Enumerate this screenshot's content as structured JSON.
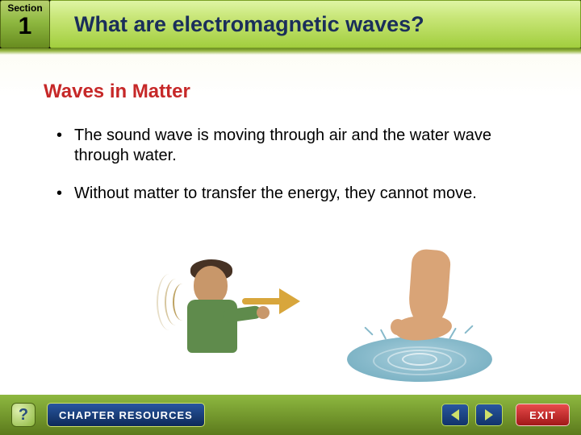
{
  "header": {
    "section_label": "Section",
    "section_number": "1",
    "title": "What are electromagnetic waves?"
  },
  "content": {
    "subtitle": "Waves in Matter",
    "bullets": [
      "The sound wave is moving through air and the water wave through water.",
      "Without matter to transfer the energy, they cannot move."
    ]
  },
  "illustrations": {
    "trumpet": {
      "skin_color": "#c8976a",
      "hair_color": "#463224",
      "shirt_color": "#5f8b4c",
      "trumpet_color": "#d8a63c",
      "wave_color": "#bda262"
    },
    "foot_water": {
      "skin_color": "#d9a477",
      "water_colors": [
        "#acd1de",
        "#86b9ca",
        "#6ea9bc"
      ],
      "ripple_color": "#ffffff"
    }
  },
  "footer": {
    "help_label": "?",
    "resources_label": "CHAPTER RESOURCES",
    "exit_label": "EXIT"
  },
  "palette": {
    "title_text": "#1a2e5a",
    "subtitle_text": "#c62828",
    "header_gradient": [
      "#dff5a4",
      "#c8e678",
      "#a2ce3e"
    ],
    "section_gradient": [
      "#b8d070",
      "#8eb840",
      "#688c20"
    ],
    "footer_gradient": [
      "#8eb840",
      "#5c7a1c"
    ],
    "nav_button": [
      "#2856a0",
      "#12346a"
    ],
    "exit_button": [
      "#e84b4b",
      "#a11818"
    ]
  }
}
